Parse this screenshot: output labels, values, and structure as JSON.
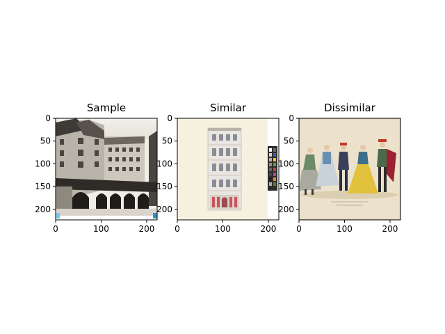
{
  "chart_data": [
    {
      "type": "image",
      "title": "Sample",
      "xlim": [
        0,
        223
      ],
      "ylim": [
        223,
        0
      ],
      "xticks": [
        0,
        100,
        200
      ],
      "yticks": [
        0,
        50,
        100,
        150,
        200
      ],
      "image_content": "sepia-photograph-courtyard-building"
    },
    {
      "type": "image",
      "title": "Similar",
      "xlim": [
        0,
        223
      ],
      "ylim": [
        223,
        0
      ],
      "xticks": [
        0,
        100,
        200
      ],
      "yticks": [
        0,
        50,
        100,
        150,
        200
      ],
      "image_content": "architectural-drawing-facade"
    },
    {
      "type": "image",
      "title": "Dissimilar",
      "xlim": [
        0,
        223
      ],
      "ylim": [
        223,
        0
      ],
      "xticks": [
        0,
        100,
        200
      ],
      "yticks": [
        0,
        50,
        100,
        150,
        200
      ],
      "image_content": "costume-illustration-figures"
    }
  ]
}
